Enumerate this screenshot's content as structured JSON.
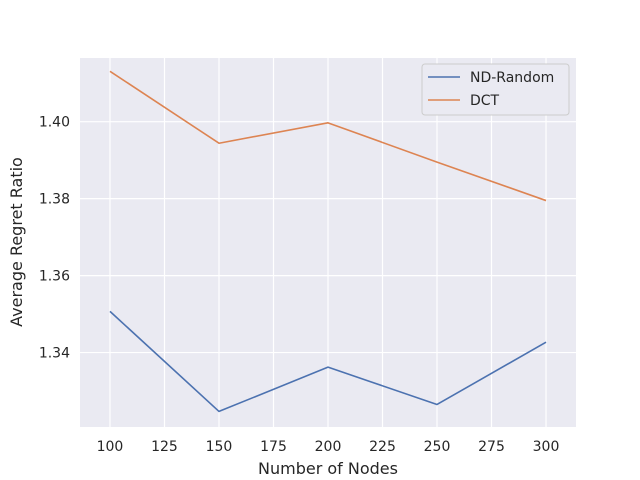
{
  "chart_data": {
    "type": "line",
    "title": "",
    "xlabel": "Number of Nodes",
    "ylabel": "Average Regret Ratio",
    "x": [
      100,
      150,
      200,
      250,
      300
    ],
    "xlim": [
      86.25,
      313.75
    ],
    "ylim": [
      1.32065,
      1.41655
    ],
    "xticks": [
      100,
      125,
      150,
      175,
      200,
      225,
      250,
      275,
      300
    ],
    "yticks": [
      1.34,
      1.36,
      1.38,
      1.4
    ],
    "ytick_labels": [
      "1.34",
      "1.36",
      "1.38",
      "1.40"
    ],
    "grid": true,
    "legend_position": "top-right",
    "series": [
      {
        "name": "ND-Random",
        "color": "#4c72b0",
        "values": [
          1.3507,
          1.3247,
          1.3362,
          1.3265,
          1.3427
        ]
      },
      {
        "name": "DCT",
        "color": "#dd8452",
        "values": [
          1.4131,
          1.3944,
          1.3997,
          1.3895,
          1.3795
        ]
      }
    ]
  }
}
